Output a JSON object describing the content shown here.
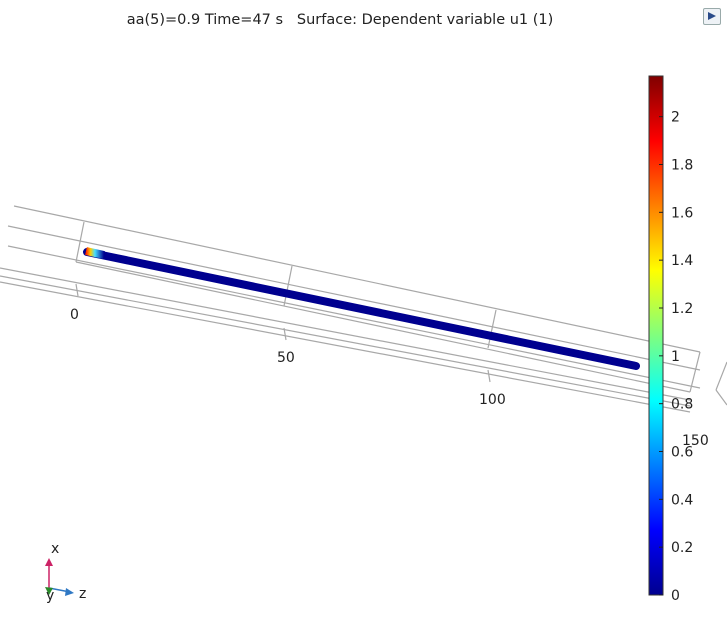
{
  "plot": {
    "title": "aa(5)=0.9 Time=47 s   Surface: Dependent variable u1 (1)"
  },
  "axes": {
    "z_ticks": [
      "0",
      "50",
      "100",
      "150"
    ],
    "triad": {
      "x": "x",
      "y": "y",
      "z": "z"
    }
  },
  "colorbar": {
    "min": 0,
    "max": 2.17,
    "ticks": [
      "0",
      "0.2",
      "0.4",
      "0.6",
      "0.8",
      "1",
      "1.2",
      "1.4",
      "1.6",
      "1.8",
      "2"
    ],
    "colormap": "rainbow"
  },
  "colors": {
    "rod": "#00008f",
    "grid": "#a8a8a8",
    "triad_x": "#cc2266",
    "triad_y": "#2a8a2a",
    "triad_z": "#2f78c4"
  },
  "toolbar": {
    "icon": "graphics-window-icon"
  }
}
